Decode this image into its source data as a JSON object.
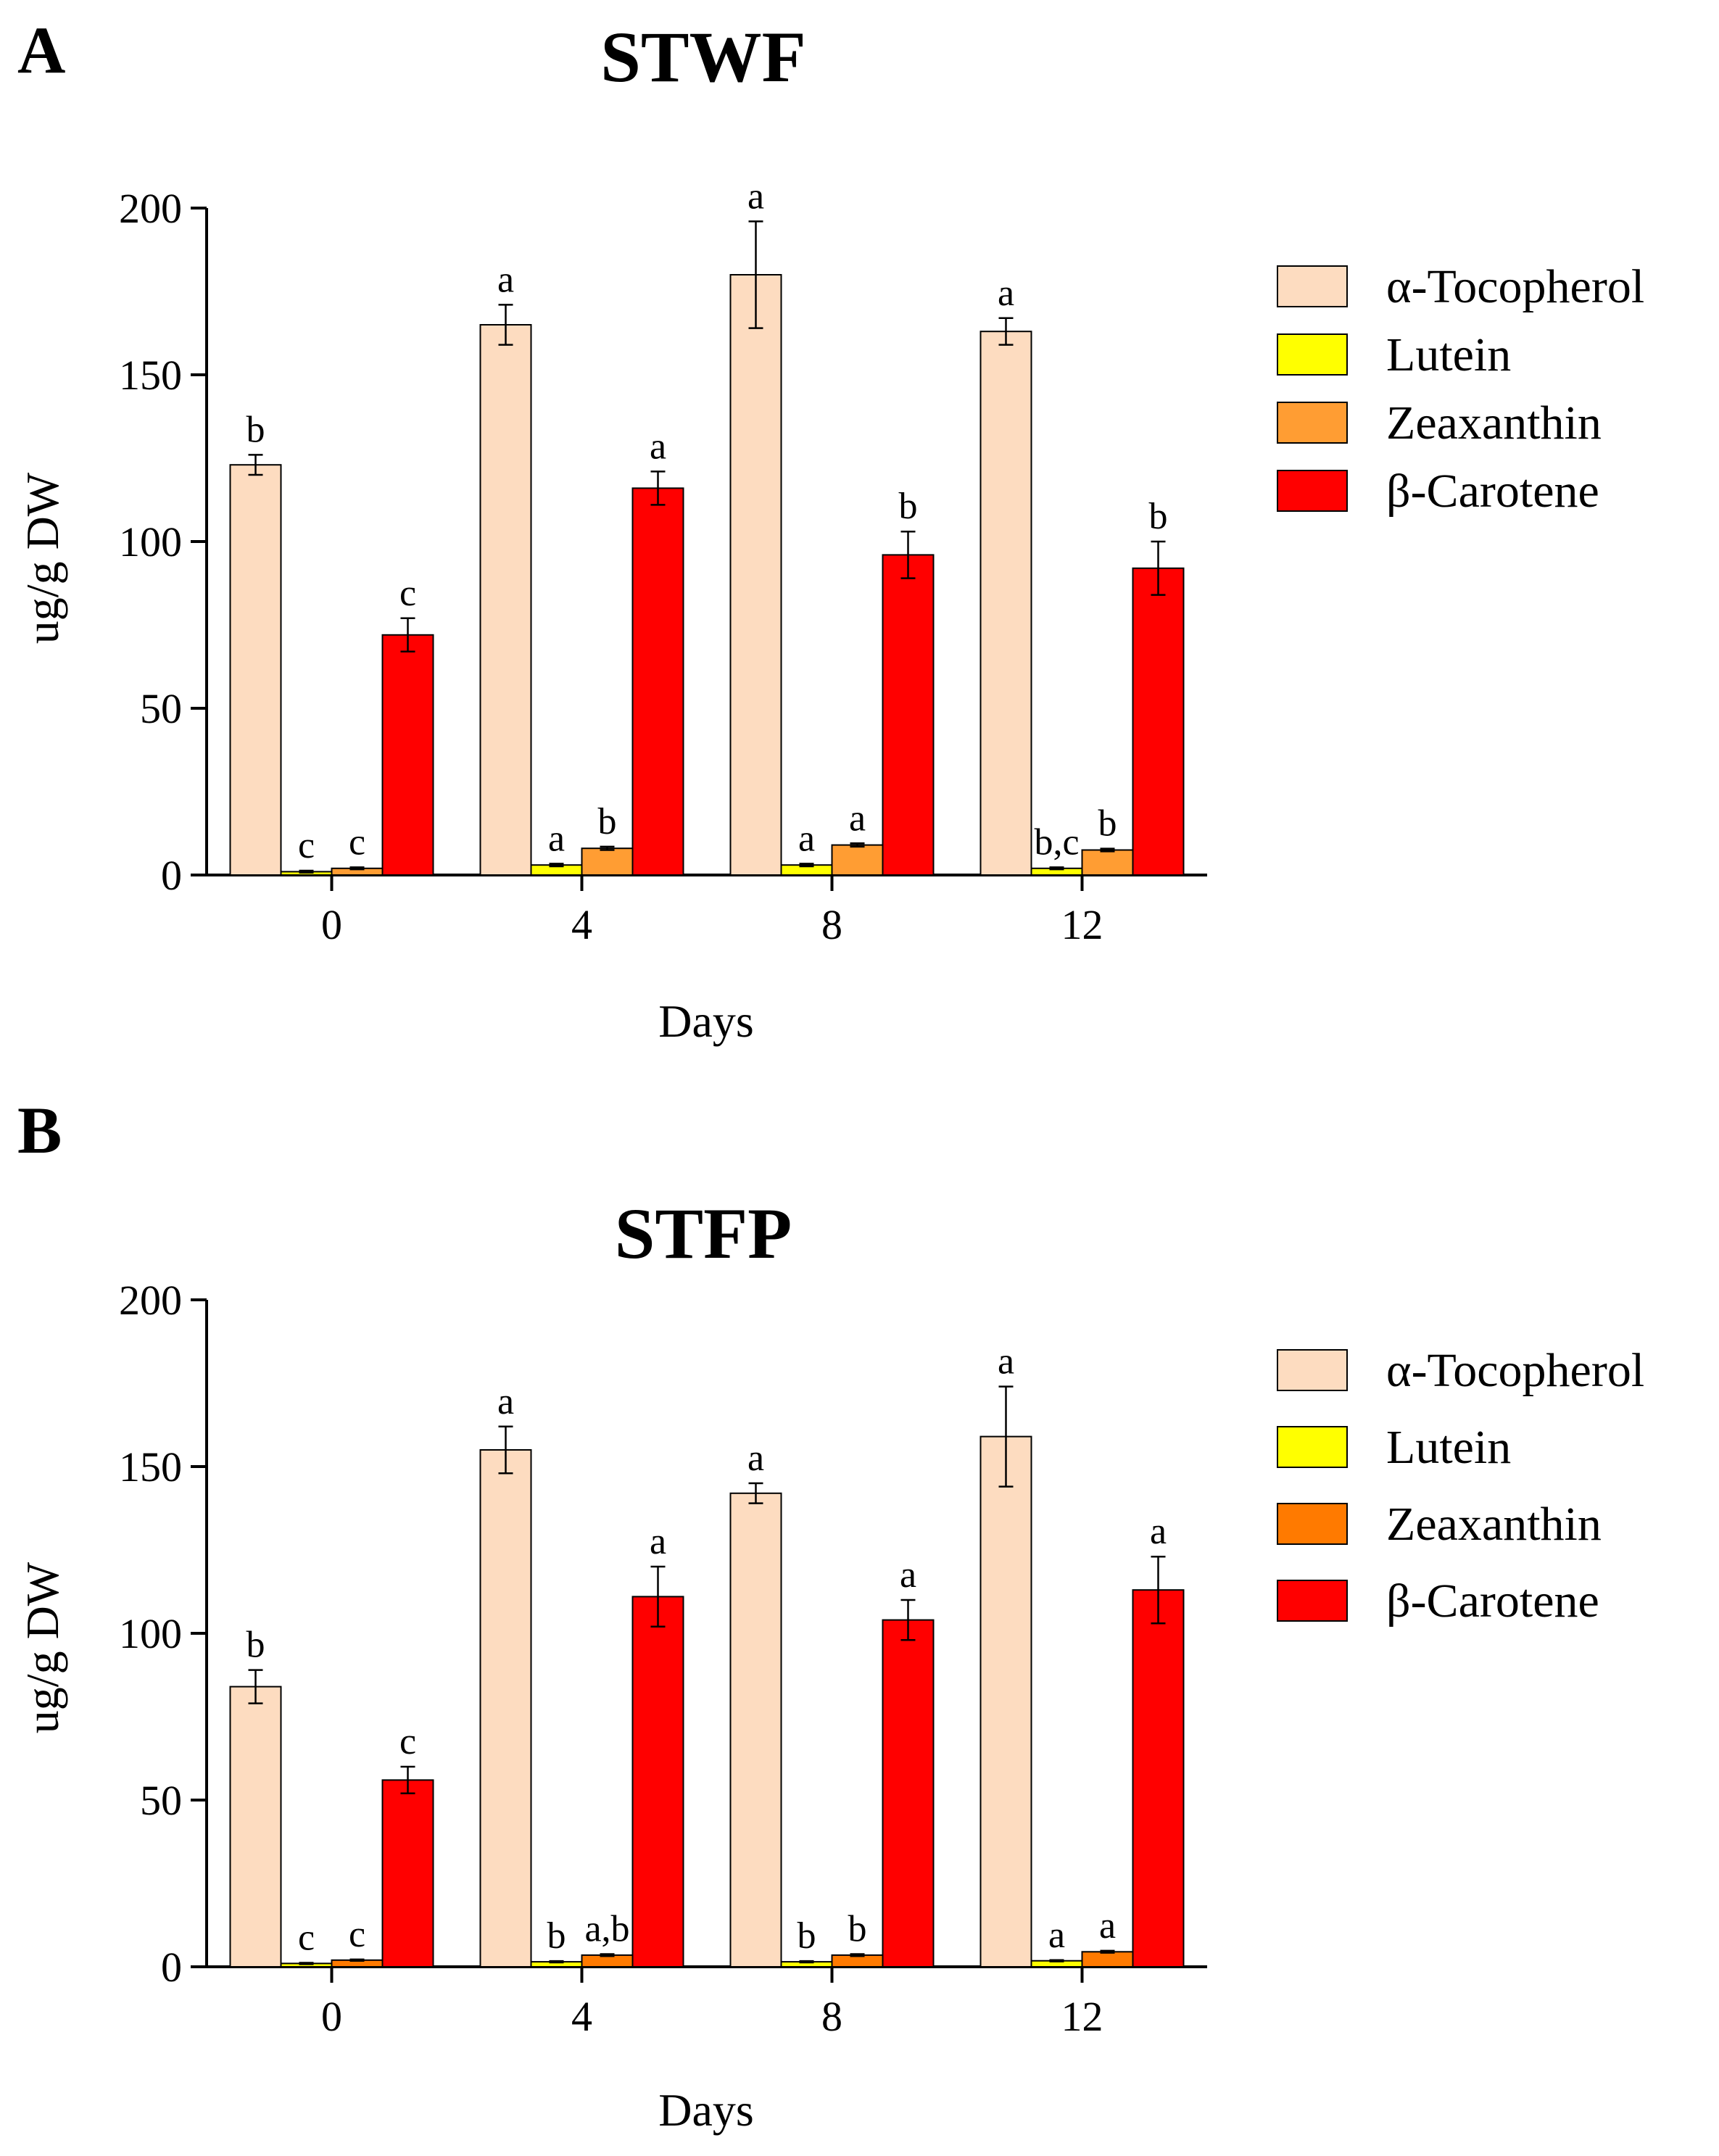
{
  "figure": {
    "panels": [
      {
        "letter": "A",
        "title": "STWF"
      },
      {
        "letter": "B",
        "title": "STFP"
      }
    ]
  },
  "colors": {
    "tocopherol": "#fddcc0",
    "lutein": "#ffff00",
    "zeaxanthin_A": "#ff9d33",
    "zeaxanthin_B": "#ff7a00",
    "carotene": "#ff0000"
  },
  "chart_data": [
    {
      "type": "bar",
      "panel": "A",
      "title": "STWF",
      "xlabel": "Days",
      "ylabel": "ug/g  DW",
      "categories": [
        "0",
        "4",
        "8",
        "12"
      ],
      "ylim": [
        0,
        200
      ],
      "yticks": [
        "0",
        "50",
        "100",
        "150",
        "200"
      ],
      "legend_position": "right",
      "series": [
        {
          "name": "α-Tocopherol",
          "color": "#fddcc0",
          "values": [
            123,
            165,
            180,
            163
          ],
          "errors": [
            3,
            6,
            16,
            4
          ],
          "letters": [
            "b",
            "a",
            "a",
            "a"
          ]
        },
        {
          "name": "Lutein",
          "color": "#ffff00",
          "values": [
            1,
            3,
            3,
            2
          ],
          "errors": [
            0.3,
            0.4,
            0.4,
            0.3
          ],
          "letters": [
            "c",
            "a",
            "a",
            "b,c"
          ]
        },
        {
          "name": "Zeaxanthin",
          "color": "#ff9d33",
          "values": [
            2,
            8,
            9,
            7.5
          ],
          "errors": [
            0.3,
            0.5,
            0.5,
            0.4
          ],
          "letters": [
            "c",
            "b",
            "a",
            "b"
          ]
        },
        {
          "name": "β-Carotene",
          "color": "#ff0000",
          "values": [
            72,
            116,
            96,
            92
          ],
          "errors": [
            5,
            5,
            7,
            8
          ],
          "letters": [
            "c",
            "a",
            "b",
            "b"
          ]
        }
      ]
    },
    {
      "type": "bar",
      "panel": "B",
      "title": "STFP",
      "xlabel": "Days",
      "ylabel": "ug/g  DW",
      "categories": [
        "0",
        "4",
        "8",
        "12"
      ],
      "ylim": [
        0,
        200
      ],
      "yticks": [
        "0",
        "50",
        "100",
        "150",
        "200"
      ],
      "legend_position": "right",
      "series": [
        {
          "name": "α-Tocopherol",
          "color": "#fddcc0",
          "values": [
            84,
            155,
            142,
            159
          ],
          "errors": [
            5,
            7,
            3,
            15
          ],
          "letters": [
            "b",
            "a",
            "a",
            "a"
          ]
        },
        {
          "name": "Lutein",
          "color": "#ffff00",
          "values": [
            1,
            1.5,
            1.5,
            1.8
          ],
          "errors": [
            0.2,
            0.2,
            0.2,
            0.2
          ],
          "letters": [
            "c",
            "b",
            "b",
            "a"
          ]
        },
        {
          "name": "Zeaxanthin",
          "color": "#ff7a00",
          "values": [
            2,
            3.5,
            3.5,
            4.5
          ],
          "errors": [
            0.2,
            0.3,
            0.3,
            0.3
          ],
          "letters": [
            "c",
            "a,b",
            "b",
            "a"
          ]
        },
        {
          "name": "β-Carotene",
          "color": "#ff0000",
          "values": [
            56,
            111,
            104,
            113
          ],
          "errors": [
            4,
            9,
            6,
            10
          ],
          "letters": [
            "c",
            "a",
            "a",
            "a"
          ]
        }
      ]
    }
  ]
}
